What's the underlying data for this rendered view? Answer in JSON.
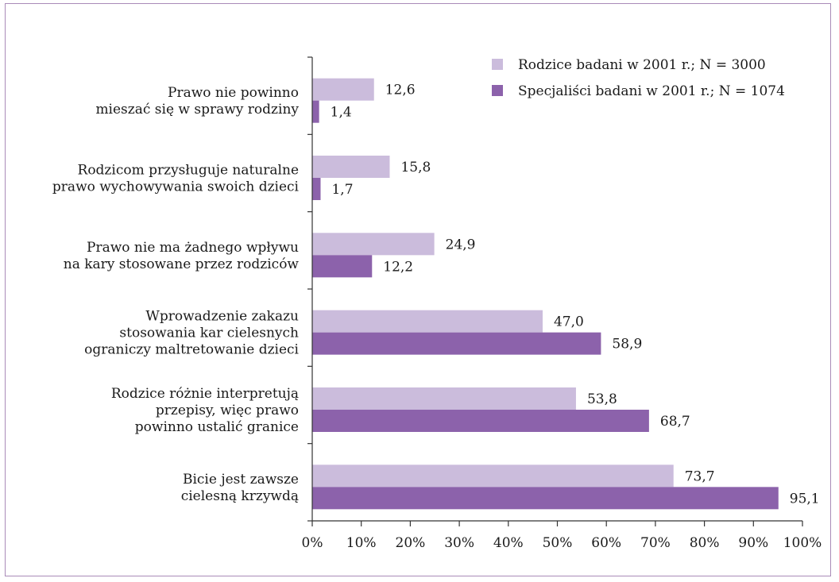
{
  "chart_data": {
    "type": "bar",
    "orientation": "horizontal",
    "categories": [
      [
        "Prawo nie powinno",
        "mieszać się w sprawy rodziny"
      ],
      [
        "Rodzicom przysługuje naturalne",
        "prawo wychowywania swoich dzieci"
      ],
      [
        "Prawo nie ma żadnego wpływu",
        "na kary stosowane przez rodziców"
      ],
      [
        "Wprowadzenie zakazu",
        "stosowania kar cielesnych",
        "ograniczy maltretowanie dzieci"
      ],
      [
        "Rodzice różnie interpretują",
        "przepisy, więc prawo",
        "powinno ustalić granice"
      ],
      [
        "Bicie jest zawsze",
        "cielesną krzywdą"
      ]
    ],
    "series": [
      {
        "name": "Rodzice badani w 2001 r.; N = 3000",
        "color": "#cbbcdc",
        "values": [
          12.6,
          15.8,
          24.9,
          47.0,
          53.8,
          73.7
        ],
        "labels": [
          "12,6",
          "15,8",
          "24,9",
          "47,0",
          "53,8",
          "73,7"
        ]
      },
      {
        "name": "Specjaliści badani w 2001 r.; N = 1074",
        "color": "#8c62ab",
        "values": [
          1.4,
          1.7,
          12.2,
          58.9,
          68.7,
          95.1
        ],
        "labels": [
          "1,4",
          "1,7",
          "12,2",
          "58,9",
          "68,7",
          "95,1"
        ]
      }
    ],
    "xlim": [
      0,
      100
    ],
    "xticks": [
      "0%",
      "10%",
      "20%",
      "30%",
      "40%",
      "50%",
      "60%",
      "70%",
      "80%",
      "90%",
      "100%"
    ],
    "legend_position": "top-right",
    "grid": false
  }
}
